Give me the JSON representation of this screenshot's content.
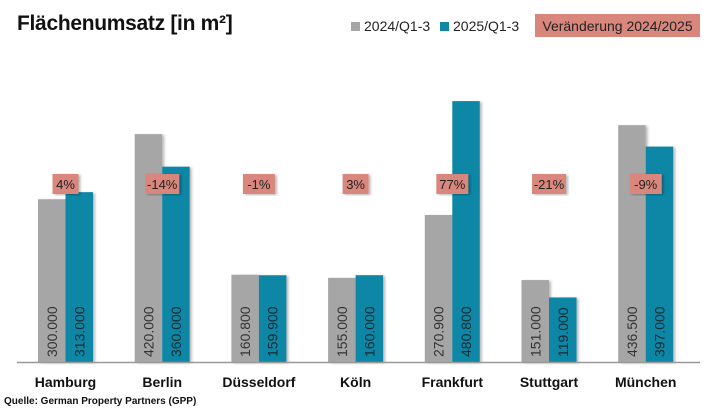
{
  "chart_data": {
    "type": "bar",
    "title": "Flächenumsatz [in m²]",
    "xlabel": "",
    "ylabel": "",
    "ylim": [
      0,
      481000
    ],
    "grid": false,
    "legend_placement": "top-right",
    "categories": [
      "Hamburg",
      "Berlin",
      "Düsseldorf",
      "Köln",
      "Frankfurt",
      "Stuttgart",
      "München"
    ],
    "series": [
      {
        "name": "2024/Q1-3",
        "color": "#a6a6a6",
        "values": [
          300000,
          420000,
          160800,
          155000,
          270900,
          151000,
          436500
        ],
        "labels": [
          "300.000",
          "420.000",
          "160.800",
          "155.000",
          "270.900",
          "151.000",
          "436.500"
        ]
      },
      {
        "name": "2025/Q1-3",
        "color": "#0f87a5",
        "values": [
          313000,
          360000,
          159900,
          160000,
          480800,
          119000,
          397000
        ],
        "labels": [
          "313.000",
          "360.000",
          "159.900",
          "160.000",
          "480.800",
          "119.000",
          "397.000"
        ]
      }
    ],
    "change_label": "Veränderung 2024/2025",
    "change_color": "#d9877d",
    "changes": [
      "4%",
      "-14%",
      "-1%",
      "3%",
      "77%",
      "-21%",
      "-9%"
    ]
  },
  "source": "Quelle: German Property Partners (GPP)"
}
